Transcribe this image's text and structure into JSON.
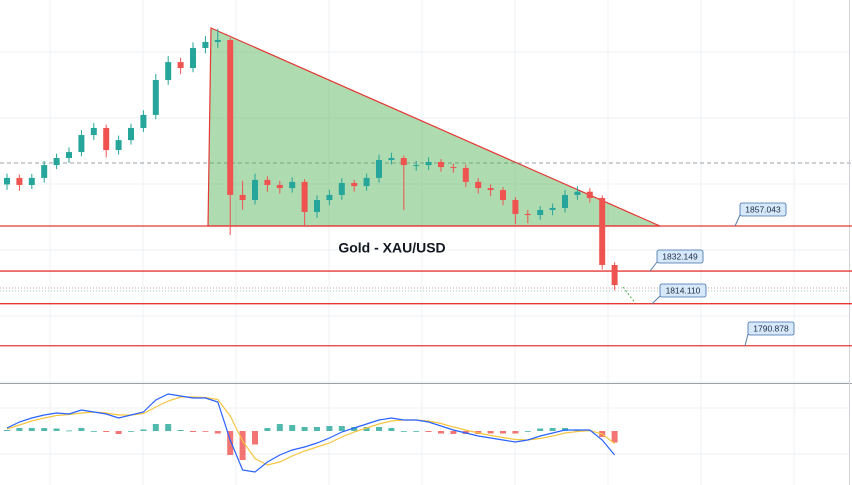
{
  "chart_data": [
    {
      "type": "candlestick",
      "title": "Gold - XAU/USD",
      "open": [
        1880.0,
        1883.6,
        1879.7,
        1883.6,
        1890.7,
        1894.6,
        1897.9,
        1907.3,
        1911.2,
        1899.0,
        1904.5,
        1911.2,
        1918.4,
        1937.7,
        1947.6,
        1944.3,
        1955.4,
        1958.7,
        1959.8,
        1874.2,
        1871.4,
        1882.5,
        1879.7,
        1878.0,
        1881.4,
        1864.8,
        1871.4,
        1874.2,
        1880.8,
        1879.1,
        1883.6,
        1893.5,
        1894.6,
        1890.7,
        1890.7,
        1892.4,
        1889.6,
        1889.1,
        1881.4,
        1878.0,
        1876.9,
        1871.4,
        1863.7,
        1863.1,
        1865.9,
        1867.0,
        1874.2,
        1876.0,
        1872.5,
        1835.5
      ],
      "high": [
        1886.0,
        1885.5,
        1885.8,
        1893.0,
        1897.0,
        1900.5,
        1910.0,
        1914.0,
        1913.0,
        1907.0,
        1913.5,
        1921.0,
        1941.0,
        1951.0,
        1950.0,
        1958.5,
        1962.0,
        1966.0,
        1961.0,
        1882.0,
        1886.0,
        1884.5,
        1882.0,
        1884.0,
        1883.0,
        1874.0,
        1877.0,
        1883.5,
        1882.5,
        1886.0,
        1896.5,
        1897.5,
        1896.0,
        1893.0,
        1895.0,
        1894.0,
        1891.5,
        1891.0,
        1883.5,
        1880.0,
        1878.5,
        1873.0,
        1866.0,
        1868.0,
        1869.5,
        1877.0,
        1879.0,
        1878.0,
        1874.0,
        1837.0
      ],
      "low": [
        1877.0,
        1876.5,
        1877.5,
        1881.0,
        1888.5,
        1892.0,
        1895.5,
        1904.5,
        1895.0,
        1896.5,
        1902.0,
        1909.0,
        1916.0,
        1935.0,
        1941.0,
        1942.0,
        1952.5,
        1955.5,
        1852.1,
        1866.0,
        1869.0,
        1876.0,
        1875.0,
        1875.5,
        1857.5,
        1861.5,
        1868.5,
        1871.5,
        1876.0,
        1876.5,
        1881.0,
        1891.0,
        1865.9,
        1887.5,
        1888.0,
        1887.0,
        1886.5,
        1878.5,
        1875.0,
        1873.5,
        1868.5,
        1858.0,
        1858.5,
        1860.5,
        1863.0,
        1864.5,
        1871.5,
        1870.0,
        1833.0,
        1821.5
      ],
      "close": [
        1883.6,
        1879.7,
        1883.6,
        1890.7,
        1894.6,
        1897.9,
        1907.3,
        1911.2,
        1899.0,
        1904.5,
        1911.2,
        1918.4,
        1937.7,
        1947.6,
        1944.3,
        1955.4,
        1958.7,
        1959.8,
        1874.2,
        1871.4,
        1882.5,
        1879.7,
        1878.0,
        1881.4,
        1864.8,
        1871.4,
        1874.2,
        1880.8,
        1879.1,
        1883.6,
        1893.5,
        1894.6,
        1890.7,
        1890.7,
        1892.4,
        1889.6,
        1889.1,
        1881.4,
        1878.0,
        1876.9,
        1871.4,
        1863.7,
        1863.1,
        1865.9,
        1867.0,
        1874.2,
        1876.0,
        1872.5,
        1835.5,
        1824.4
      ],
      "up_color": "#26a69a",
      "down_color": "#ef5350",
      "levels": [
        {
          "value": 1857.043,
          "label": "1857.043"
        },
        {
          "value": 1832.149,
          "label": "1832.149"
        },
        {
          "value": 1814.11,
          "label": "1814.110"
        },
        {
          "value": 1790.878,
          "label": "1790.878"
        }
      ],
      "level_color": "#e53935",
      "ylim": [
        1770.3,
        1981.9
      ]
    },
    {
      "type": "macd",
      "macd": [
        0.6,
        1.8,
        2.6,
        3.2,
        3.6,
        3.4,
        4.2,
        3.8,
        3.4,
        2.6,
        3.2,
        3.8,
        6.2,
        7.4,
        7.0,
        6.6,
        6.6,
        5.8,
        -1.8,
        -7.8,
        -8.2,
        -6.2,
        -4.8,
        -3.8,
        -3.2,
        -2.4,
        -1.4,
        -0.2,
        0.6,
        1.4,
        2.2,
        2.6,
        2.2,
        2.2,
        1.8,
        1.0,
        0.2,
        -0.4,
        -1.0,
        -1.4,
        -1.8,
        -2.2,
        -1.8,
        -1.0,
        -0.4,
        0.2,
        0.2,
        0.2,
        -1.8,
        -4.8
      ],
      "signal": [
        0.4,
        1.2,
        2.0,
        2.6,
        3.1,
        3.3,
        3.6,
        3.8,
        3.6,
        3.2,
        3.2,
        3.5,
        4.8,
        6.0,
        6.8,
        6.8,
        6.7,
        6.3,
        3.0,
        -2.0,
        -5.5,
        -6.8,
        -6.2,
        -5.0,
        -4.0,
        -3.2,
        -2.4,
        -1.2,
        -0.2,
        0.6,
        1.4,
        2.0,
        2.2,
        2.2,
        2.0,
        1.5,
        0.8,
        0.2,
        -0.4,
        -0.9,
        -1.3,
        -1.7,
        -1.8,
        -1.5,
        -1.0,
        -0.4,
        -0.1,
        0.1,
        -0.6,
        -2.5
      ],
      "histogram": [
        0.2,
        0.6,
        0.6,
        0.6,
        0.5,
        0.1,
        0.6,
        0.0,
        -0.2,
        -0.6,
        0.0,
        0.3,
        1.4,
        1.4,
        0.2,
        -0.2,
        -0.1,
        -0.5,
        -4.8,
        -5.8,
        -2.7,
        0.6,
        1.4,
        1.2,
        0.8,
        0.8,
        1.0,
        1.0,
        0.8,
        0.8,
        0.8,
        0.6,
        0.0,
        0.0,
        -0.2,
        -0.5,
        -0.6,
        -0.6,
        -0.6,
        -0.5,
        -0.5,
        -0.5,
        0.0,
        0.5,
        0.6,
        0.6,
        0.3,
        0.1,
        -1.2,
        -2.3
      ],
      "macd_color": "#2962ff",
      "signal_color": "#f5c542",
      "positive_color": "#26a69a",
      "negative_color": "#ef5350",
      "ylim": [
        -10.8,
        9.2
      ]
    }
  ]
}
